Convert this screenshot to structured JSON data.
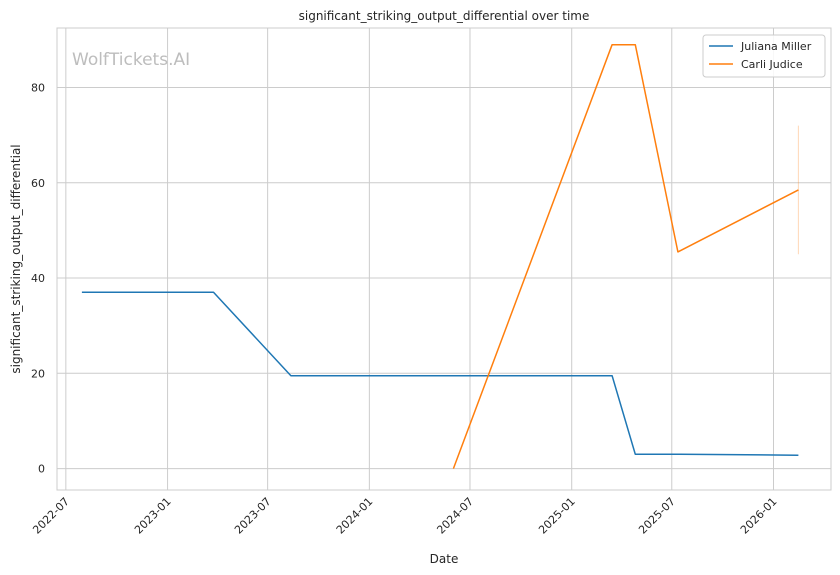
{
  "chart_data": {
    "type": "line",
    "title": "significant_striking_output_differential over time",
    "xlabel": "Date",
    "ylabel": "significant_striking_output_differential",
    "watermark": "WolfTickets.AI",
    "xlim": [
      "2022-06-15",
      "2026-04-15"
    ],
    "ylim": [
      -4.5,
      92.5
    ],
    "x_ticks": [
      {
        "date": "2022-07-01",
        "label": "2022-07"
      },
      {
        "date": "2023-01-01",
        "label": "2023-01"
      },
      {
        "date": "2023-07-01",
        "label": "2023-07"
      },
      {
        "date": "2024-01-01",
        "label": "2024-01"
      },
      {
        "date": "2024-07-01",
        "label": "2024-07"
      },
      {
        "date": "2025-01-01",
        "label": "2025-01"
      },
      {
        "date": "2025-07-01",
        "label": "2025-07"
      },
      {
        "date": "2026-01-01",
        "label": "2026-01"
      }
    ],
    "y_ticks": [
      0,
      20,
      40,
      60,
      80
    ],
    "grid": true,
    "legend_position": "top-right",
    "series": [
      {
        "name": "Juliana Miller",
        "color": "#1f77b4",
        "points": [
          {
            "x": "2022-07-30",
            "y": 37.0
          },
          {
            "x": "2023-03-25",
            "y": 37.0
          },
          {
            "x": "2023-08-12",
            "y": 19.5
          },
          {
            "x": "2025-03-15",
            "y": 19.5
          },
          {
            "x": "2025-04-26",
            "y": 3.0
          },
          {
            "x": "2025-07-15",
            "y": 3.0
          },
          {
            "x": "2026-02-15",
            "y": 2.8
          }
        ]
      },
      {
        "name": "Carli Judice",
        "color": "#ff7f0e",
        "points": [
          {
            "x": "2024-06-01",
            "y": 0.0
          },
          {
            "x": "2025-03-15",
            "y": 89.0
          },
          {
            "x": "2025-04-26",
            "y": 89.0
          },
          {
            "x": "2025-07-12",
            "y": 45.5
          },
          {
            "x": "2026-02-15",
            "y": 58.5
          }
        ],
        "error_band": {
          "x": "2026-02-15",
          "low": 45.0,
          "high": 72.0
        }
      }
    ]
  }
}
